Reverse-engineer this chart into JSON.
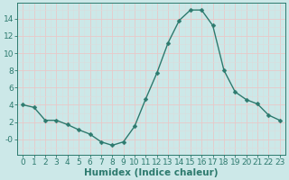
{
  "x": [
    0,
    1,
    2,
    3,
    4,
    5,
    6,
    7,
    8,
    9,
    10,
    11,
    12,
    13,
    14,
    15,
    16,
    17,
    18,
    19,
    20,
    21,
    22,
    23
  ],
  "y": [
    4.0,
    3.7,
    2.2,
    2.2,
    1.7,
    1.1,
    0.6,
    -0.3,
    -0.7,
    -0.3,
    1.5,
    4.7,
    7.7,
    11.2,
    13.8,
    15.0,
    15.0,
    13.2,
    8.0,
    5.5,
    4.6,
    4.1,
    2.8,
    2.2
  ],
  "line_color": "#2d7a6e",
  "marker": "D",
  "marker_size": 2.5,
  "bg_color": "#cce8e8",
  "grid_major_color": "#e8c8c8",
  "grid_minor_color": "#dcdcdc",
  "xlabel": "Humidex (Indice chaleur)",
  "xlim": [
    -0.5,
    23.5
  ],
  "ylim": [
    -1.8,
    15.8
  ],
  "yticks": [
    0,
    2,
    4,
    6,
    8,
    10,
    12,
    14
  ],
  "ytick_labels": [
    "-0",
    "2",
    "4",
    "6",
    "8",
    "10",
    "12",
    "14"
  ],
  "xtick_labels": [
    "0",
    "1",
    "2",
    "3",
    "4",
    "5",
    "6",
    "7",
    "8",
    "9",
    "10",
    "11",
    "12",
    "13",
    "14",
    "15",
    "16",
    "17",
    "18",
    "19",
    "20",
    "21",
    "22",
    "23"
  ],
  "xlabel_fontsize": 7.5,
  "tick_fontsize": 6.5,
  "line_width": 1.0
}
